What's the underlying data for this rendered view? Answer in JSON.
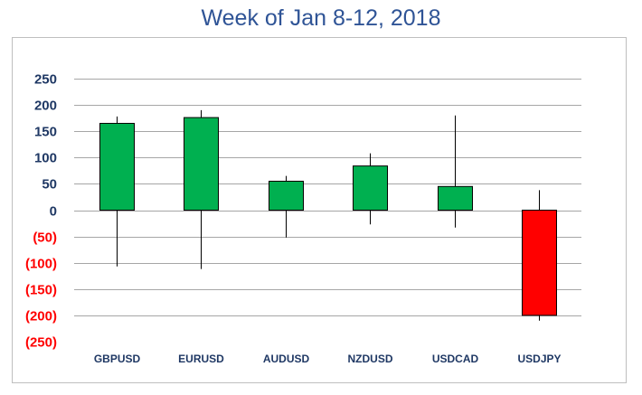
{
  "title": "Week of Jan 8-12, 2018",
  "colors": {
    "title": "#2f5496",
    "positive_label": "#1f3864",
    "negative_label": "#ff0000",
    "up_fill": "#00b050",
    "down_fill": "#ff0000",
    "grid": "#a6a6a6"
  },
  "chart_data": {
    "type": "candlestick",
    "title": "Week of Jan 8-12, 2018",
    "xlabel": "",
    "ylabel": "",
    "ylim": [
      -250,
      250
    ],
    "grid": true,
    "legend": "none",
    "y_ticks": [
      250,
      200,
      150,
      100,
      50,
      0,
      -50,
      -100,
      -150,
      -200,
      -250
    ],
    "y_tick_labels": [
      "250",
      "200",
      "150",
      "100",
      "50",
      "0",
      "(50)",
      "(100)",
      "(150)",
      "(200)",
      "(250)"
    ],
    "categories": [
      "GBPUSD",
      "EURUSD",
      "AUDUSD",
      "NZDUSD",
      "USDCAD",
      "USDJPY"
    ],
    "open": [
      0,
      0,
      0,
      0,
      0,
      0
    ],
    "close": [
      165,
      176,
      55,
      84,
      45,
      -200
    ],
    "high": [
      178,
      190,
      65,
      108,
      180,
      38
    ],
    "low": [
      -107,
      -112,
      -52,
      -27,
      -33,
      -210
    ]
  }
}
